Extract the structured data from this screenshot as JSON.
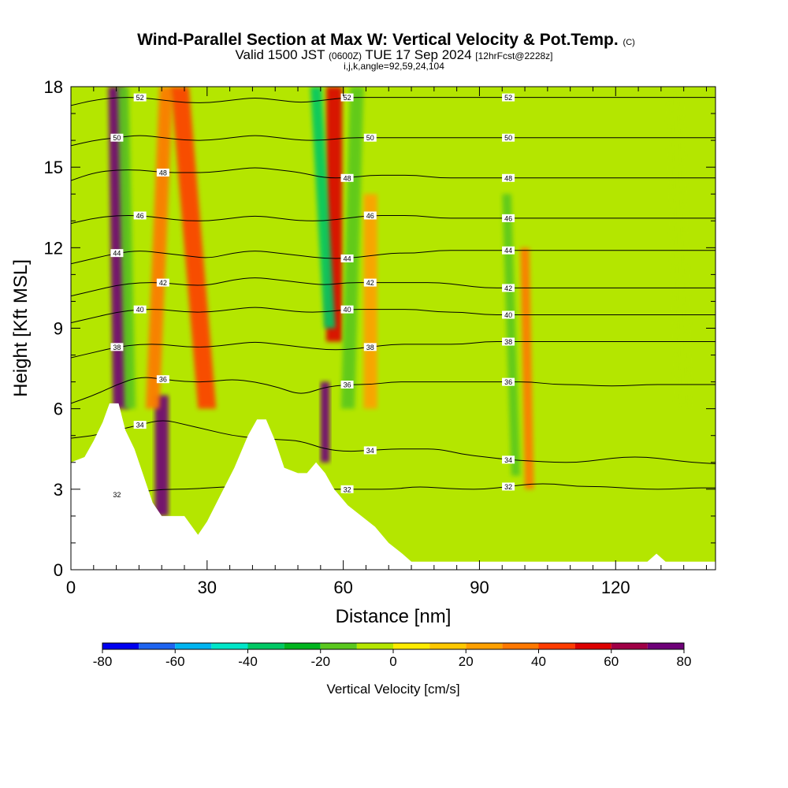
{
  "chart_data": {
    "type": "heatmap",
    "title": "Wind-Parallel Section at Max W: Vertical Velocity & Pot.Temp.",
    "title_mark": "(C)",
    "subtitle_parts": [
      "Valid 1500 JST",
      "(0600Z)",
      "TUE 17 Sep 2024",
      "[12hrFcst@2228z]"
    ],
    "subtitle2": "i,j,k,angle=92,59,24,104",
    "xlabel": "Distance [nm]",
    "ylabel": "Height [Kft MSL]",
    "xlim": [
      0,
      142
    ],
    "ylim": [
      0,
      18
    ],
    "x_ticks": [
      "0",
      "30",
      "60",
      "90",
      "120"
    ],
    "x_tick_values": [
      0,
      30,
      60,
      90,
      120
    ],
    "y_ticks": [
      "0",
      "3",
      "6",
      "9",
      "12",
      "15",
      "18"
    ],
    "y_tick_values": [
      0,
      3,
      6,
      9,
      12,
      15,
      18
    ],
    "colorbar": {
      "label": "Vertical Velocity [cm/s]",
      "tick_labels": [
        "-80",
        "-60",
        "-40",
        "-20",
        "0",
        "20",
        "40",
        "60",
        "80"
      ],
      "tick_values": [
        -80,
        -60,
        -40,
        -20,
        0,
        20,
        40,
        60,
        80
      ],
      "levels": [
        -80,
        -70,
        -60,
        -50,
        -40,
        -30,
        -20,
        -10,
        0,
        10,
        20,
        30,
        40,
        50,
        60,
        70,
        80
      ],
      "colors": [
        "#0000f0",
        "#1e64f0",
        "#00b4f0",
        "#00e6c8",
        "#00c864",
        "#00b41e",
        "#5ac81e",
        "#b4e600",
        "#ffeb00",
        "#ffc800",
        "#ffa000",
        "#ff7800",
        "#ff3c00",
        "#dc0000",
        "#a00046",
        "#6e0078"
      ]
    },
    "theta_contours": [
      {
        "value": 32,
        "label": "32",
        "heights": [
          2.7,
          2.75,
          2.8,
          2.9,
          3.0,
          3.0,
          3.05,
          3.1,
          3.05,
          3.0,
          3.0,
          3.0,
          3.0,
          3.0,
          3.0,
          3.1,
          3.05,
          3.0,
          3.0,
          3.1,
          3.2,
          3.2,
          3.1,
          3.1,
          3.05,
          3.0,
          3.0,
          3.05,
          3.05
        ]
      },
      {
        "value": 34,
        "label": "34",
        "heights": [
          4.9,
          5.0,
          5.2,
          5.4,
          5.6,
          5.4,
          5.2,
          5.0,
          4.9,
          4.85,
          4.8,
          4.5,
          4.4,
          4.45,
          4.5,
          4.5,
          4.5,
          4.3,
          4.2,
          4.1,
          4.05,
          4.0,
          4.0,
          4.1,
          4.2,
          4.2,
          4.1,
          4.0,
          3.95
        ]
      },
      {
        "value": 36,
        "label": "36",
        "heights": [
          6.2,
          6.5,
          6.9,
          7.2,
          7.1,
          7.0,
          7.0,
          7.1,
          7.0,
          6.8,
          6.5,
          6.8,
          6.9,
          6.9,
          7.0,
          7.0,
          7.0,
          7.0,
          7.0,
          7.0,
          7.0,
          6.9,
          6.9,
          6.85,
          6.85,
          6.9,
          6.9,
          6.9,
          6.9
        ]
      },
      {
        "value": 38,
        "label": "38",
        "heights": [
          7.9,
          8.1,
          8.3,
          8.4,
          8.4,
          8.3,
          8.3,
          8.4,
          8.5,
          8.4,
          8.3,
          8.2,
          8.2,
          8.3,
          8.4,
          8.4,
          8.4,
          8.4,
          8.5,
          8.5,
          8.5,
          8.5,
          8.5,
          8.5,
          8.5,
          8.5,
          8.5,
          8.5,
          8.5
        ]
      },
      {
        "value": 40,
        "label": "40",
        "heights": [
          9.2,
          9.4,
          9.6,
          9.7,
          9.7,
          9.6,
          9.6,
          9.7,
          9.8,
          9.7,
          9.6,
          9.6,
          9.7,
          9.7,
          9.7,
          9.7,
          9.6,
          9.6,
          9.5,
          9.5,
          9.5,
          9.5,
          9.5,
          9.5,
          9.5,
          9.5,
          9.5,
          9.5,
          9.5
        ]
      },
      {
        "value": 42,
        "label": "42",
        "heights": [
          10.2,
          10.4,
          10.6,
          10.7,
          10.7,
          10.6,
          10.6,
          10.8,
          10.9,
          10.8,
          10.7,
          10.6,
          10.7,
          10.7,
          10.7,
          10.7,
          10.7,
          10.6,
          10.5,
          10.5,
          10.5,
          10.5,
          10.5,
          10.5,
          10.5,
          10.5,
          10.5,
          10.5,
          10.5
        ]
      },
      {
        "value": 44,
        "label": "44",
        "heights": [
          11.4,
          11.6,
          11.8,
          11.9,
          11.8,
          11.7,
          11.6,
          11.8,
          11.9,
          11.8,
          11.7,
          11.6,
          11.6,
          11.7,
          11.8,
          11.8,
          11.9,
          11.9,
          11.9,
          11.9,
          11.9,
          11.9,
          11.9,
          11.9,
          11.9,
          11.9,
          11.9,
          11.9,
          11.9
        ]
      },
      {
        "value": 46,
        "label": "46",
        "heights": [
          12.9,
          13.1,
          13.2,
          13.2,
          13.1,
          13.0,
          13.0,
          13.1,
          13.2,
          13.1,
          13.0,
          13.0,
          13.1,
          13.2,
          13.2,
          13.2,
          13.1,
          13.1,
          13.1,
          13.1,
          13.1,
          13.1,
          13.1,
          13.1,
          13.1,
          13.1,
          13.1,
          13.1,
          13.1
        ]
      },
      {
        "value": 48,
        "label": "48",
        "heights": [
          14.5,
          14.8,
          14.9,
          14.9,
          14.8,
          14.8,
          14.8,
          14.9,
          15.0,
          14.9,
          14.8,
          14.6,
          14.6,
          14.7,
          14.7,
          14.7,
          14.6,
          14.6,
          14.6,
          14.6,
          14.6,
          14.6,
          14.6,
          14.6,
          14.6,
          14.6,
          14.6,
          14.6,
          14.6
        ]
      },
      {
        "value": 50,
        "label": "50",
        "heights": [
          15.8,
          16.0,
          16.1,
          16.2,
          16.1,
          16.0,
          16.0,
          16.1,
          16.2,
          16.1,
          16.0,
          16.0,
          16.1,
          16.1,
          16.1,
          16.1,
          16.1,
          16.1,
          16.1,
          16.1,
          16.1,
          16.1,
          16.1,
          16.1,
          16.1,
          16.1,
          16.1,
          16.1,
          16.1
        ]
      },
      {
        "value": 52,
        "label": "52",
        "heights": [
          17.3,
          17.5,
          17.6,
          17.6,
          17.5,
          17.4,
          17.4,
          17.5,
          17.6,
          17.5,
          17.4,
          17.5,
          17.6,
          17.6,
          17.6,
          17.6,
          17.6,
          17.6,
          17.6,
          17.6,
          17.6,
          17.6,
          17.6,
          17.6,
          17.6,
          17.6,
          17.6,
          17.6,
          17.6
        ]
      }
    ],
    "terrain_profile": [
      [
        0,
        4.0
      ],
      [
        3,
        4.2
      ],
      [
        5,
        4.8
      ],
      [
        7,
        5.5
      ],
      [
        8.5,
        6.2
      ],
      [
        10.5,
        6.2
      ],
      [
        12,
        5.2
      ],
      [
        14,
        4.5
      ],
      [
        16,
        3.5
      ],
      [
        18,
        2.5
      ],
      [
        20,
        2.0
      ],
      [
        22,
        2.0
      ],
      [
        25,
        2.0
      ],
      [
        28,
        1.3
      ],
      [
        30,
        1.8
      ],
      [
        33,
        2.8
      ],
      [
        36,
        3.8
      ],
      [
        39,
        5.0
      ],
      [
        41,
        5.6
      ],
      [
        43,
        5.6
      ],
      [
        45,
        4.8
      ],
      [
        47,
        3.8
      ],
      [
        50,
        3.6
      ],
      [
        52,
        3.6
      ],
      [
        54,
        4.0
      ],
      [
        56,
        3.6
      ],
      [
        58,
        3.0
      ],
      [
        61,
        2.4
      ],
      [
        64,
        2.0
      ],
      [
        67,
        1.6
      ],
      [
        70,
        1.0
      ],
      [
        73,
        0.6
      ],
      [
        75,
        0.3
      ],
      [
        127,
        0.3
      ],
      [
        129,
        0.6
      ],
      [
        131,
        0.3
      ],
      [
        142,
        0.3
      ]
    ],
    "updraft_bands": [
      {
        "w": 70,
        "x_bottom": 11,
        "x_top": 10,
        "y_bottom": 6.0,
        "y_top": 18,
        "width": 3.5
      },
      {
        "w": -20,
        "x_bottom": 13,
        "x_top": 11.5,
        "y_bottom": 6.0,
        "y_top": 18,
        "width": 2.5
      },
      {
        "w": 75,
        "x_bottom": 20,
        "x_top": 20,
        "y_bottom": 2.0,
        "y_top": 6.5,
        "width": 3.0
      },
      {
        "w": 30,
        "x_bottom": 18,
        "x_top": 21,
        "y_bottom": 6.0,
        "y_top": 18,
        "width": 3.0
      },
      {
        "w": 40,
        "x_bottom": 30,
        "x_top": 24,
        "y_bottom": 6.0,
        "y_top": 18,
        "width": 4.0
      },
      {
        "w": 70,
        "x_bottom": 56,
        "x_top": 56,
        "y_bottom": 4.0,
        "y_top": 7.0,
        "width": 2.0
      },
      {
        "w": 50,
        "x_bottom": 58,
        "x_top": 58,
        "y_bottom": 8.5,
        "y_top": 18,
        "width": 3.5
      },
      {
        "w": -40,
        "x_bottom": 57,
        "x_top": 54,
        "y_bottom": 9.0,
        "y_top": 18,
        "width": 2.5
      },
      {
        "w": -20,
        "x_bottom": 61,
        "x_top": 63,
        "y_bottom": 6.0,
        "y_top": 18,
        "width": 3.0
      },
      {
        "w": 20,
        "x_bottom": 66,
        "x_top": 66,
        "y_bottom": 6.0,
        "y_top": 14,
        "width": 3.0
      },
      {
        "w": -20,
        "x_bottom": 98,
        "x_top": 96,
        "y_bottom": 3.5,
        "y_top": 14,
        "width": 2.0
      },
      {
        "w": 30,
        "x_bottom": 101,
        "x_top": 100,
        "y_bottom": 3.0,
        "y_top": 12,
        "width": 2.0
      },
      {
        "w": -10,
        "x_bottom": 135,
        "x_top": 133,
        "y_bottom": 6.0,
        "y_top": 18,
        "width": 3.0
      }
    ]
  }
}
